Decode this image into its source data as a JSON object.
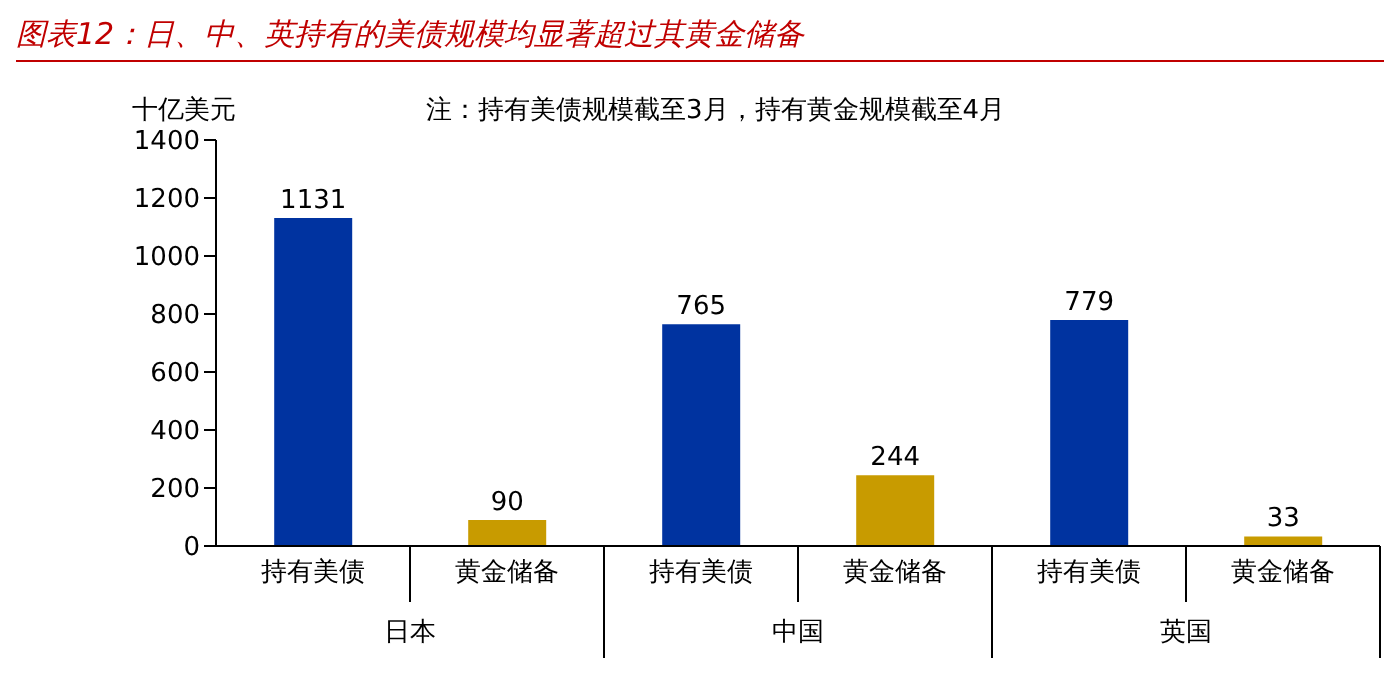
{
  "chart_data": {
    "type": "bar",
    "title": "图表12：日、中、英持有的美债规模均显著超过其黄金储备",
    "ylabel": "十亿美元",
    "annotations": [
      "注：持有美债规模截至3月，持有黄金规模截至4月",
      "日本",
      "中国",
      "英国"
    ],
    "categories": [
      "持有美债",
      "黄金储备",
      "持有美债",
      "黄金储备",
      "持有美债",
      "黄金储备"
    ],
    "values": [
      1131,
      90,
      765,
      244,
      779,
      33
    ],
    "colors": [
      "#0033a0",
      "#c89b00",
      "#0033a0",
      "#c89b00",
      "#0033a0",
      "#c89b00"
    ],
    "ylim": [
      0,
      1400
    ],
    "yticks": [
      0,
      200,
      400,
      600,
      800,
      1000,
      1200,
      1400
    ],
    "data_labels": true,
    "grid": false
  }
}
